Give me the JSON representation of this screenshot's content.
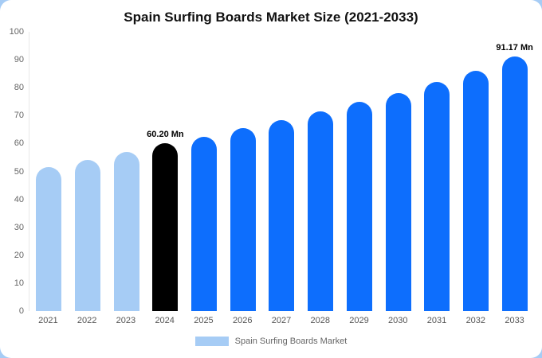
{
  "colors": {
    "page_accent": "#a6ccf5",
    "historical": "#a6ccf5",
    "base_year": "#000000",
    "forecast": "#0d6efd"
  },
  "legend": {
    "label": "Spain Surfing Boards Market"
  },
  "chart_data": {
    "type": "bar",
    "title": "Spain Surfing Boards Market Size (2021-2033)",
    "xlabel": "",
    "ylabel": "",
    "unit": "Mn",
    "categories": [
      "2021",
      "2022",
      "2023",
      "2024",
      "2025",
      "2026",
      "2027",
      "2028",
      "2029",
      "2030",
      "2031",
      "2032",
      "2033"
    ],
    "values": [
      51.5,
      54,
      57,
      60.2,
      62.5,
      65.5,
      68.5,
      71.5,
      75,
      78,
      82,
      86,
      91.17
    ],
    "bar_roles": [
      "historical",
      "historical",
      "historical",
      "base_year",
      "forecast",
      "forecast",
      "forecast",
      "forecast",
      "forecast",
      "forecast",
      "forecast",
      "forecast",
      "forecast"
    ],
    "ylim": [
      0,
      100
    ],
    "y_ticks": [
      100,
      90,
      80,
      70,
      60,
      50,
      40,
      30,
      20,
      10,
      0
    ],
    "grid": false,
    "legend_position": "bottom",
    "annotations": [
      {
        "index": 3,
        "category": "2024",
        "text": "60.20 Mn"
      },
      {
        "index": 12,
        "category": "2033",
        "text": "91.17 Mn"
      }
    ]
  }
}
